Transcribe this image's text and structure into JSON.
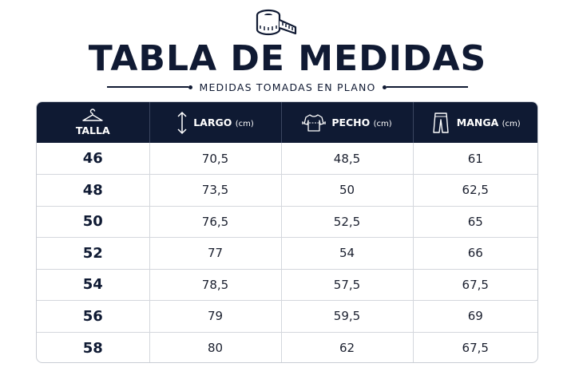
{
  "header": {
    "icon": "measuring-tape-icon",
    "title": "TABLA DE MEDIDAS",
    "subtitle": "MEDIDAS TOMADAS EN PLANO"
  },
  "table": {
    "columns": [
      {
        "label": "TALLA",
        "unit": "",
        "icon": "hanger-icon"
      },
      {
        "label": "LARGO",
        "unit": "(cm)",
        "icon": "vertical-arrow-icon"
      },
      {
        "label": "PECHO",
        "unit": "(cm)",
        "icon": "shirt-chest-icon"
      },
      {
        "label": "MANGA",
        "unit": "(cm)",
        "icon": "sleeve-icon"
      }
    ],
    "rows": [
      {
        "talla": "46",
        "largo": "70,5",
        "pecho": "48,5",
        "manga": "61"
      },
      {
        "talla": "48",
        "largo": "73,5",
        "pecho": "50",
        "manga": "62,5"
      },
      {
        "talla": "50",
        "largo": "76,5",
        "pecho": "52,5",
        "manga": "65"
      },
      {
        "talla": "52",
        "largo": "77",
        "pecho": "54",
        "manga": "66"
      },
      {
        "talla": "54",
        "largo": "78,5",
        "pecho": "57,5",
        "manga": "67,5"
      },
      {
        "talla": "56",
        "largo": "79",
        "pecho": "59,5",
        "manga": "69"
      },
      {
        "talla": "58",
        "largo": "80",
        "pecho": "62",
        "manga": "67,5"
      }
    ]
  },
  "colors": {
    "header_bg": "#0f1a33",
    "text": "#101a33",
    "border": "#d4d7dd"
  }
}
